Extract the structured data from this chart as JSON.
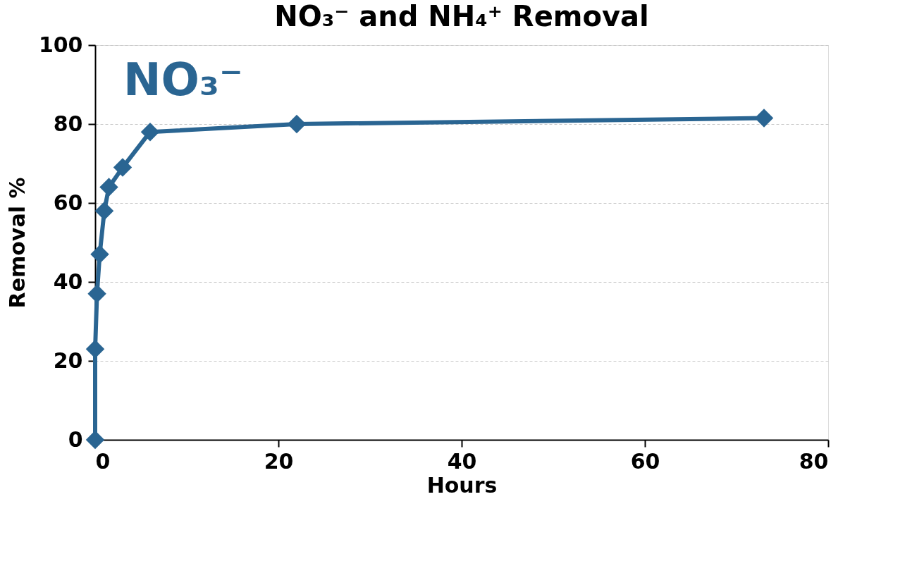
{
  "chart_data": {
    "type": "line",
    "title": "NO₃⁻ and NH₄⁺ Removal",
    "xlabel": "Hours",
    "ylabel": "Removal %",
    "series": [
      {
        "name": "NO₃⁻",
        "color": "#2a6592",
        "x": [
          0,
          0,
          0.2,
          0.5,
          1,
          1.5,
          3,
          6,
          22,
          73
        ],
        "values": [
          0,
          23,
          37,
          47,
          58,
          64,
          69,
          78,
          80,
          81.5
        ]
      }
    ],
    "xlim": [
      0,
      80
    ],
    "xticks": [
      0,
      20,
      40,
      60,
      80
    ],
    "ylim": [
      0,
      100
    ],
    "yticks": [
      0,
      20,
      40,
      60,
      80,
      100
    ],
    "grid": "y",
    "marker": "diamond",
    "line_style": "solid"
  }
}
